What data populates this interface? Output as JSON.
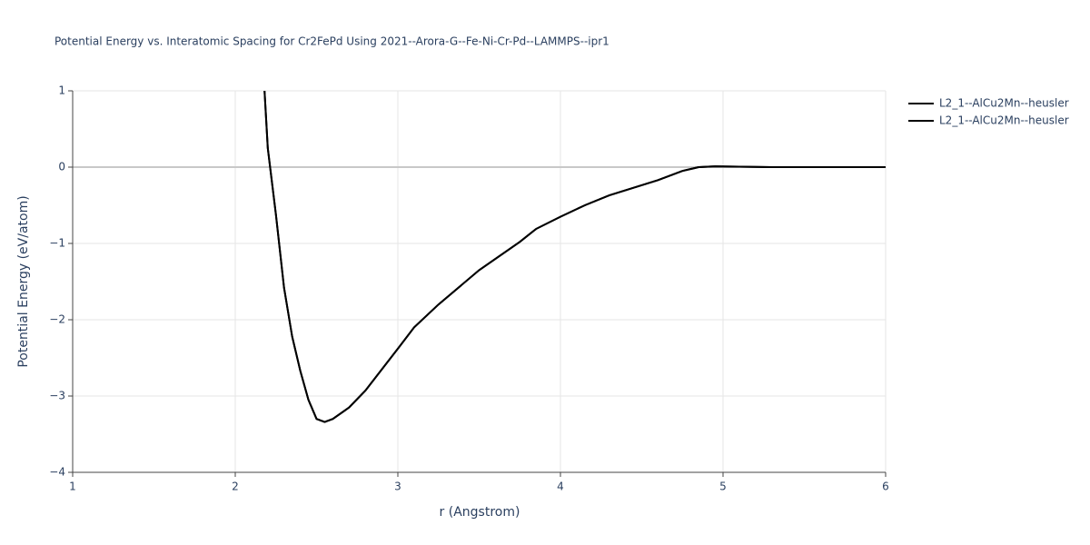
{
  "chart_data": {
    "type": "line",
    "title": "Potential Energy vs. Interatomic Spacing for Cr2FePd Using 2021--Arora-G--Fe-Ni-Cr-Pd--LAMMPS--ipr1",
    "x_label": "r (Angstrom)",
    "y_label": "Potential Energy (eV/atom)",
    "x": [
      2.18,
      2.2,
      2.25,
      2.3,
      2.35,
      2.4,
      2.45,
      2.5,
      2.55,
      2.6,
      2.7,
      2.8,
      3.0,
      3.1,
      3.25,
      3.5,
      3.75,
      3.85,
      4.0,
      4.15,
      4.3,
      4.45,
      4.6,
      4.75,
      4.85,
      4.95,
      5.3,
      6.0
    ],
    "series": [
      {
        "name": "L2_1--AlCu2Mn--heusler",
        "color": "#000000",
        "values": [
          1.0,
          0.25,
          -0.62,
          -1.58,
          -2.22,
          -2.67,
          -3.05,
          -3.3,
          -3.34,
          -3.3,
          -3.15,
          -2.93,
          -2.38,
          -2.1,
          -1.8,
          -1.35,
          -0.98,
          -0.81,
          -0.65,
          -0.5,
          -0.37,
          -0.27,
          -0.17,
          -0.05,
          0.0,
          0.01,
          0.0,
          0.0
        ]
      },
      {
        "name": "L2_1--AlCu2Mn--heusler",
        "color": "#000000",
        "values": [
          1.0,
          0.25,
          -0.62,
          -1.58,
          -2.22,
          -2.67,
          -3.05,
          -3.3,
          -3.34,
          -3.3,
          -3.15,
          -2.93,
          -2.38,
          -2.1,
          -1.8,
          -1.35,
          -0.98,
          -0.81,
          -0.65,
          -0.5,
          -0.37,
          -0.27,
          -0.17,
          -0.05,
          0.0,
          0.01,
          0.0,
          0.0
        ]
      }
    ],
    "xlim": [
      1,
      6
    ],
    "xticks": [
      1,
      2,
      3,
      4,
      5,
      6
    ],
    "ylim": [
      -4,
      1
    ],
    "yticks": [
      {
        "value": -4,
        "label": "−4"
      },
      {
        "value": -3,
        "label": "−3"
      },
      {
        "value": -2,
        "label": "−2"
      },
      {
        "value": -1,
        "label": "−1"
      },
      0,
      1
    ],
    "grid": true,
    "legend": "top-right"
  }
}
